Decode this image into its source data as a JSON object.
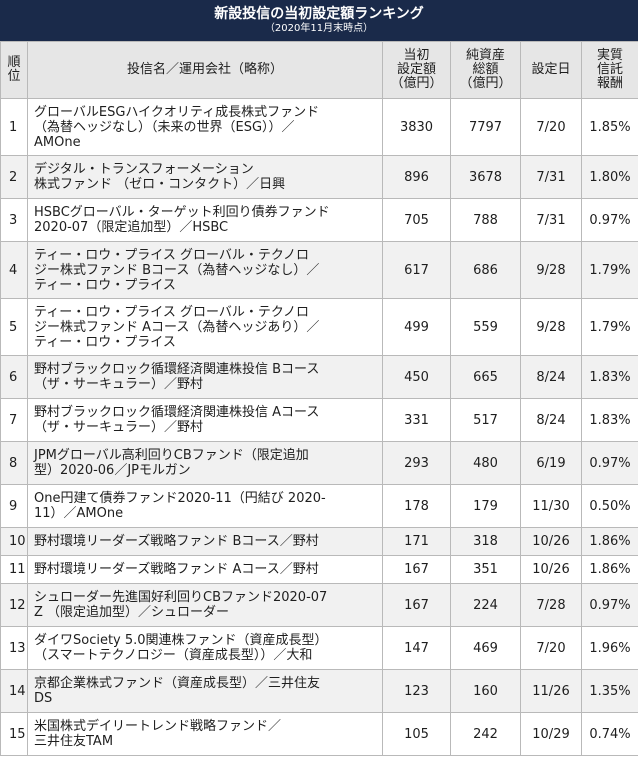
{
  "title": "新設投信の当初設定額ランキング",
  "subtitle": "（2020年11月末時点）",
  "columns": {
    "rank": [
      "順",
      "位"
    ],
    "name": "投信名／運用会社（略称）",
    "initial": [
      "当初",
      "設定額",
      "（億円）"
    ],
    "assets": [
      "純資産",
      "総額",
      "（億円）"
    ],
    "date": "設定日",
    "fee": [
      "実質",
      "信託",
      "報酬"
    ]
  },
  "rows": [
    {
      "rank": "1",
      "name": [
        "グローバルESGハイクオリティ成長株式ファンド",
        "（為替ヘッジなし）（未来の世界（ESG））／",
        "AMOne"
      ],
      "initial": "3830",
      "assets": "7797",
      "date": "7/20",
      "fee": "1.85%"
    },
    {
      "rank": "2",
      "name": [
        "デジタル・トランスフォーメーション",
        "株式ファンド （ゼロ・コンタクト）／日興"
      ],
      "initial": "896",
      "assets": "3678",
      "date": "7/31",
      "fee": "1.80%"
    },
    {
      "rank": "3",
      "name": [
        "HSBCグローバル・ターゲット利回り債券ファンド",
        "2020-07（限定追加型）／HSBC"
      ],
      "initial": "705",
      "assets": "788",
      "date": "7/31",
      "fee": "0.97%"
    },
    {
      "rank": "4",
      "name": [
        "ティー・ロウ・プライス グローバル・テクノロ",
        "ジー株式ファンド Bコース（為替ヘッジなし）／",
        "ティー・ロウ・プライス"
      ],
      "initial": "617",
      "assets": "686",
      "date": "9/28",
      "fee": "1.79%"
    },
    {
      "rank": "5",
      "name": [
        "ティー・ロウ・プライス グローバル・テクノロ",
        "ジー株式ファンド Aコース（為替ヘッジあり）／",
        "ティー・ロウ・プライス"
      ],
      "initial": "499",
      "assets": "559",
      "date": "9/28",
      "fee": "1.79%"
    },
    {
      "rank": "6",
      "name": [
        "野村ブラックロック循環経済関連株投信 Bコース",
        "（ザ・サーキュラー）／野村"
      ],
      "initial": "450",
      "assets": "665",
      "date": "8/24",
      "fee": "1.83%"
    },
    {
      "rank": "7",
      "name": [
        "野村ブラックロック循環経済関連株投信 Aコース",
        "（ザ・サーキュラー）／野村"
      ],
      "initial": "331",
      "assets": "517",
      "date": "8/24",
      "fee": "1.83%"
    },
    {
      "rank": "8",
      "name": [
        "JPMグローバル高利回りCBファンド（限定追加",
        "型）2020-06／JPモルガン"
      ],
      "initial": "293",
      "assets": "480",
      "date": "6/19",
      "fee": "0.97%"
    },
    {
      "rank": "9",
      "name": [
        "One円建て債券ファンド2020-11（円結び 2020-",
        "11）／AMOne"
      ],
      "initial": "178",
      "assets": "179",
      "date": "11/30",
      "fee": "0.50%"
    },
    {
      "rank": "10",
      "name": [
        "野村環境リーダーズ戦略ファンド Bコース／野村"
      ],
      "initial": "171",
      "assets": "318",
      "date": "10/26",
      "fee": "1.86%"
    },
    {
      "rank": "11",
      "name": [
        "野村環境リーダーズ戦略ファンド Aコース／野村"
      ],
      "initial": "167",
      "assets": "351",
      "date": "10/26",
      "fee": "1.86%"
    },
    {
      "rank": "12",
      "name": [
        "シュローダー先進国好利回りCBファンド2020-07",
        "Z （限定追加型）／シュローダー"
      ],
      "initial": "167",
      "assets": "224",
      "date": "7/28",
      "fee": "0.97%"
    },
    {
      "rank": "13",
      "name": [
        "ダイワSociety 5.0関連株ファンド（資産成長型）",
        "（スマートテクノロジー（資産成長型））／大和"
      ],
      "initial": "147",
      "assets": "469",
      "date": "7/20",
      "fee": "1.96%"
    },
    {
      "rank": "14",
      "name": [
        "京都企業株式ファンド（資産成長型）／三井住友",
        "DS"
      ],
      "initial": "123",
      "assets": "160",
      "date": "11/26",
      "fee": "1.35%"
    },
    {
      "rank": "15",
      "name": [
        "米国株式デイリートレンド戦略ファンド／",
        "三井住友TAM"
      ],
      "initial": "105",
      "assets": "242",
      "date": "10/29",
      "fee": "0.74%"
    }
  ]
}
